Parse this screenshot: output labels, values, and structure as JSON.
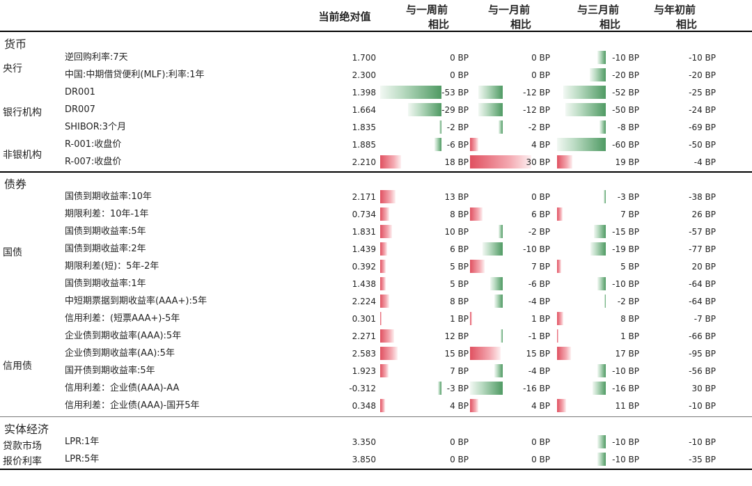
{
  "header": {
    "abs_value": "当前绝对值",
    "week": [
      "与一周前",
      "相比"
    ],
    "month": [
      "与一月前",
      "相比"
    ],
    "three_month": [
      "与三月前",
      "相比"
    ],
    "ytd": [
      "与年初前",
      "相比"
    ]
  },
  "unit": "BP",
  "sections": [
    "货币",
    "债券",
    "实体经济"
  ],
  "groups": [
    "央行",
    "银行机构",
    "非银机构",
    "国债",
    "信用债",
    "贷款市场",
    "报价利率"
  ],
  "chart_data": {
    "type": "table",
    "columns": [
      "当前绝对值",
      "与一周前相比",
      "与一月前相比",
      "与三月前相比",
      "与年初前相比"
    ],
    "rows": [
      {
        "section": "货币",
        "group": "央行",
        "name": "逆回购利率:7天",
        "abs": "1.700",
        "w": 0,
        "m": 0,
        "q": -10,
        "y": -10
      },
      {
        "section": "货币",
        "group": "央行",
        "name": "中国:中期借贷便利(MLF):利率:1年",
        "abs": "2.300",
        "w": 0,
        "m": 0,
        "q": -20,
        "y": -20
      },
      {
        "section": "货币",
        "group": "银行机构",
        "name": "DR001",
        "abs": "1.398",
        "w": -53,
        "m": -12,
        "q": -52,
        "y": -25
      },
      {
        "section": "货币",
        "group": "银行机构",
        "name": "DR007",
        "abs": "1.664",
        "w": -29,
        "m": -12,
        "q": -50,
        "y": -24
      },
      {
        "section": "货币",
        "group": "银行机构",
        "name": "SHIBOR:3个月",
        "abs": "1.835",
        "w": -2,
        "m": -2,
        "q": -8,
        "y": -69
      },
      {
        "section": "货币",
        "group": "非银机构",
        "name": "R-001:收盘价",
        "abs": "1.885",
        "w": -6,
        "m": 4,
        "q": -60,
        "y": -50
      },
      {
        "section": "货币",
        "group": "非银机构",
        "name": "R-007:收盘价",
        "abs": "2.210",
        "w": 18,
        "m": 30,
        "q": 19,
        "y": -4
      },
      {
        "section": "债券",
        "group": "国债",
        "name": "国债到期收益率:10年",
        "abs": "2.171",
        "w": 13,
        "m": 0,
        "q": -3,
        "y": -38
      },
      {
        "section": "债券",
        "group": "国债",
        "name": "期限利差：10年-1年",
        "abs": "0.734",
        "w": 8,
        "m": 6,
        "q": 7,
        "y": 26
      },
      {
        "section": "债券",
        "group": "国债",
        "name": "国债到期收益率:5年",
        "abs": "1.831",
        "w": 10,
        "m": -2,
        "q": -15,
        "y": -57
      },
      {
        "section": "债券",
        "group": "国债",
        "name": "国债到期收益率:2年",
        "abs": "1.439",
        "w": 6,
        "m": -10,
        "q": -19,
        "y": -77
      },
      {
        "section": "债券",
        "group": "国债",
        "name": "期限利差(短)：5年-2年",
        "abs": "0.392",
        "w": 5,
        "m": 7,
        "q": 5,
        "y": 20
      },
      {
        "section": "债券",
        "group": "国债",
        "name": "国债到期收益率:1年",
        "abs": "1.438",
        "w": 5,
        "m": -6,
        "q": -10,
        "y": -64
      },
      {
        "section": "债券",
        "group": "信用债",
        "name": "中短期票据到期收益率(AAA+):5年",
        "abs": "2.224",
        "w": 8,
        "m": -4,
        "q": -2,
        "y": -64
      },
      {
        "section": "债券",
        "group": "信用债",
        "name": "信用利差：(短票AAA+)-5年",
        "abs": "0.301",
        "w": 1,
        "m": 1,
        "q": 8,
        "y": -7
      },
      {
        "section": "债券",
        "group": "信用债",
        "name": "企业债到期收益率(AAA):5年",
        "abs": "2.271",
        "w": 12,
        "m": -1,
        "q": 1,
        "y": -66
      },
      {
        "section": "债券",
        "group": "信用债",
        "name": "企业债到期收益率(AA):5年",
        "abs": "2.583",
        "w": 15,
        "m": 15,
        "q": 17,
        "y": -95
      },
      {
        "section": "债券",
        "group": "信用债",
        "name": "国开债到期收益率:5年",
        "abs": "1.923",
        "w": 7,
        "m": -4,
        "q": -10,
        "y": -56
      },
      {
        "section": "债券",
        "group": "信用债",
        "name": "信用利差：企业债(AAA)-AA",
        "abs": "-0.312",
        "w": -3,
        "m": -16,
        "q": -16,
        "y": 30
      },
      {
        "section": "债券",
        "group": "信用债",
        "name": "信用利差：企业债(AAA)-国开5年",
        "abs": "0.348",
        "w": 4,
        "m": 4,
        "q": 11,
        "y": -10
      },
      {
        "section": "实体经济",
        "group": "贷款市场报价利率",
        "name": "LPR:1年",
        "abs": "3.350",
        "w": 0,
        "m": 0,
        "q": -10,
        "y": -10
      },
      {
        "section": "实体经济",
        "group": "贷款市场报价利率",
        "name": "LPR:5年",
        "abs": "3.850",
        "w": 0,
        "m": 0,
        "q": -10,
        "y": -35
      }
    ]
  }
}
